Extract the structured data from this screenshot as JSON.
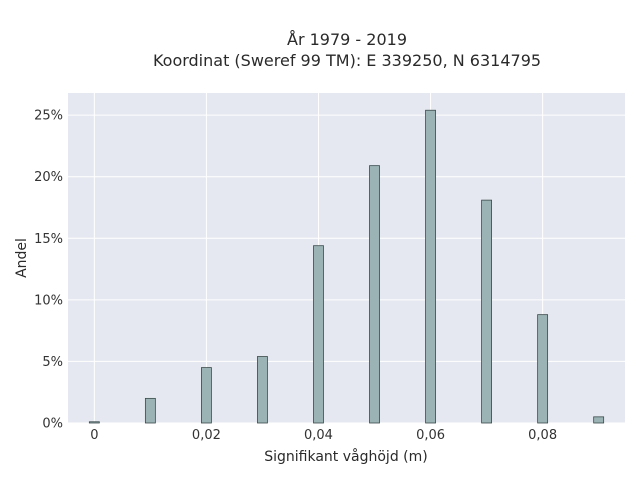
{
  "chart_data": {
    "type": "bar",
    "title_lines": [
      "År 1979 - 2019",
      "Koordinat (Sweref 99 TM): E 339250, N 6314795"
    ],
    "xlabel": "Signifikant våghöjd (m)",
    "ylabel": "Andel",
    "x": [
      0,
      0.01,
      0.02,
      0.03,
      0.04,
      0.05,
      0.06,
      0.07,
      0.08,
      0.09
    ],
    "values": [
      0.1,
      2.0,
      4.5,
      5.4,
      14.4,
      20.9,
      25.4,
      18.1,
      8.8,
      0.5
    ],
    "x_ticks": [
      {
        "value": 0,
        "label": "0"
      },
      {
        "value": 0.02,
        "label": "0,02"
      },
      {
        "value": 0.04,
        "label": "0,04"
      },
      {
        "value": 0.06,
        "label": "0,06"
      },
      {
        "value": 0.08,
        "label": "0,08"
      }
    ],
    "y_ticks": [
      {
        "value": 0,
        "label": "0%"
      },
      {
        "value": 5,
        "label": "5%"
      },
      {
        "value": 10,
        "label": "10%"
      },
      {
        "value": 15,
        "label": "15%"
      },
      {
        "value": 20,
        "label": "20%"
      },
      {
        "value": 25,
        "label": "25%"
      }
    ],
    "xlim": [
      -0.0047,
      0.0947
    ],
    "ylim": [
      0,
      26.8
    ],
    "grid": true,
    "colors": {
      "bar_fill": "#9bb3b5",
      "bar_stroke": "#3b4a4b",
      "plot_bg": "#e5e8f0",
      "grid": "#ffffff"
    }
  }
}
